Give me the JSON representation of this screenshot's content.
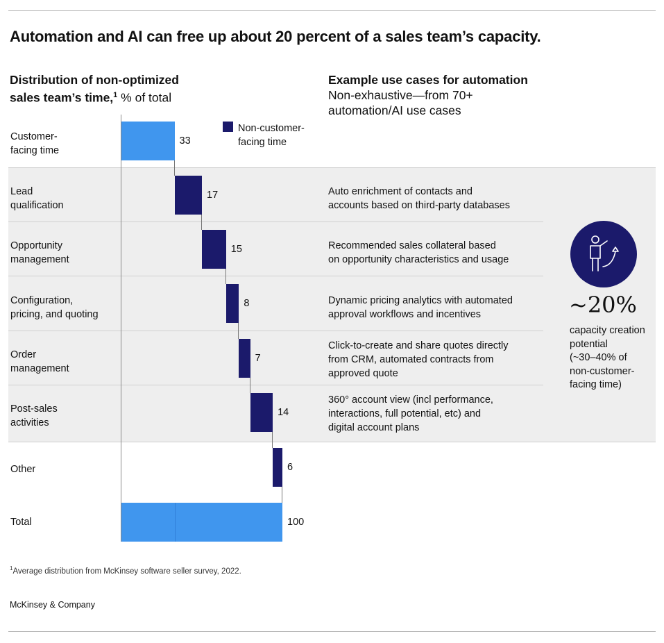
{
  "title": "Automation and AI can free up  about 20 percent of a sales team’s capacity.",
  "left_header": {
    "line1": "Distribution of non-optimized",
    "line2_bold": "sales team’s time,",
    "footnote_marker": "1",
    "line2_normal": " % of total"
  },
  "right_header": {
    "bold": "Example use cases for automation",
    "sub1": "Non-exhaustive—from 70+",
    "sub2": "automation/AI use cases"
  },
  "legend": {
    "line1": "Non-customer-",
    "line2": "facing time",
    "color": "#1b1a6b"
  },
  "rows": [
    {
      "label1": "Customer-",
      "label2": "facing time",
      "use1": "",
      "use2": "",
      "use3": ""
    },
    {
      "label1": "Lead",
      "label2": "qualification",
      "use1": "Auto enrichment of contacts and",
      "use2": "accounts based on third-party databases",
      "use3": ""
    },
    {
      "label1": "Opportunity",
      "label2": "management",
      "use1": "Recommended sales collateral based",
      "use2": "on opportunity characteristics and usage",
      "use3": ""
    },
    {
      "label1": "Configuration,",
      "label2": "pricing, and quoting",
      "use1": "Dynamic pricing analytics with automated",
      "use2": "approval workflows and incentives",
      "use3": ""
    },
    {
      "label1": "Order",
      "label2": "management",
      "use1": "Click-to-create and share quotes directly",
      "use2": "from CRM, automated contracts from",
      "use3": "approved quote"
    },
    {
      "label1": "Post-sales",
      "label2": "activities",
      "use1": "360° account view (incl performance,",
      "use2": "interactions, full potential, etc) and",
      "use3": "digital account plans"
    },
    {
      "label1": "Other",
      "label2": "",
      "use1": "",
      "use2": "",
      "use3": ""
    },
    {
      "label1": "Total",
      "label2": "",
      "use1": "",
      "use2": "",
      "use3": ""
    }
  ],
  "chart_data": {
    "type": "bar",
    "subtype": "waterfall",
    "title": "Distribution of non-optimized sales team’s time, % of total",
    "categories": [
      "Customer-facing time",
      "Lead qualification",
      "Opportunity management",
      "Configuration, pricing, and quoting",
      "Order management",
      "Post-sales activities",
      "Other",
      "Total"
    ],
    "values": [
      33,
      17,
      15,
      8,
      7,
      14,
      6,
      100
    ],
    "value_labels": [
      "33",
      "17",
      "15",
      "8",
      "7",
      "14",
      "6",
      "100"
    ],
    "series": [
      {
        "name": "Customer-facing time",
        "categories": [
          "Customer-facing time"
        ],
        "color": "#4096ee"
      },
      {
        "name": "Non-customer-facing time",
        "categories": [
          "Lead qualification",
          "Opportunity management",
          "Configuration, pricing, and quoting",
          "Order management",
          "Post-sales activities",
          "Other"
        ],
        "color": "#1b1a6b"
      }
    ],
    "total_split": [
      33,
      67
    ],
    "xlim": [
      0,
      100
    ],
    "legend": "top-right",
    "grid": false
  },
  "callout": {
    "pct": "~20%",
    "desc1": "capacity creation",
    "desc2": "potential",
    "desc3": "(~30–40% of",
    "desc4": "non-customer-",
    "desc5": "facing time)",
    "icon": "person-pointing-up-icon"
  },
  "footnote": {
    "marker": "1",
    "text": "Average distribution from McKinsey software seller survey, 2022."
  },
  "brand": "McKinsey & Company",
  "colors": {
    "customer": "#4096ee",
    "noncustomer": "#1b1a6b",
    "band": "#eeeeee"
  }
}
